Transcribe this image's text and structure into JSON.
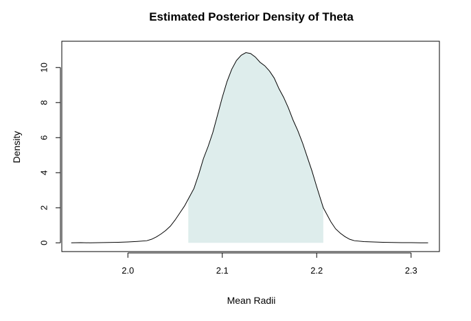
{
  "chart_data": {
    "type": "area",
    "title": "Estimated Posterior Density of Theta",
    "xlabel": "Mean Radii",
    "ylabel": "Density",
    "xlim": [
      1.93,
      2.33
    ],
    "ylim": [
      -0.5,
      11.5
    ],
    "x_ticks": [
      2.0,
      2.1,
      2.2,
      2.3
    ],
    "x_tick_labels": [
      "2.0",
      "2.1",
      "2.2",
      "2.3"
    ],
    "y_ticks": [
      0,
      2,
      4,
      6,
      8,
      10
    ],
    "y_tick_labels": [
      "0",
      "2",
      "4",
      "6",
      "8",
      "10"
    ],
    "grid": false,
    "interval_shaded": [
      2.064,
      2.207
    ],
    "interval_fill_color": "#deedec",
    "line_color": "#000000",
    "series": [
      {
        "x": [
          1.94,
          1.95,
          1.96,
          1.97,
          1.98,
          1.99,
          2.0,
          2.01,
          2.02,
          2.025,
          2.03,
          2.035,
          2.04,
          2.045,
          2.05,
          2.055,
          2.06,
          2.064,
          2.07,
          2.075,
          2.08,
          2.085,
          2.09,
          2.095,
          2.1,
          2.105,
          2.11,
          2.115,
          2.12,
          2.125,
          2.13,
          2.135,
          2.14,
          2.145,
          2.15,
          2.155,
          2.16,
          2.165,
          2.17,
          2.175,
          2.18,
          2.185,
          2.19,
          2.195,
          2.2,
          2.207,
          2.21,
          2.215,
          2.22,
          2.225,
          2.23,
          2.235,
          2.24,
          2.25,
          2.26,
          2.27,
          2.28,
          2.29,
          2.3,
          2.31,
          2.318
        ],
        "y": [
          0.0,
          0.01,
          0.0,
          0.01,
          0.02,
          0.03,
          0.05,
          0.08,
          0.12,
          0.2,
          0.33,
          0.5,
          0.7,
          0.95,
          1.3,
          1.7,
          2.1,
          2.5,
          3.1,
          3.9,
          4.8,
          5.5,
          6.3,
          7.3,
          8.3,
          9.2,
          9.9,
          10.4,
          10.7,
          10.85,
          10.8,
          10.6,
          10.3,
          10.1,
          9.8,
          9.4,
          8.8,
          8.3,
          7.7,
          7.0,
          6.4,
          5.7,
          4.9,
          4.1,
          3.2,
          2.0,
          1.7,
          1.2,
          0.8,
          0.55,
          0.35,
          0.2,
          0.12,
          0.07,
          0.05,
          0.03,
          0.02,
          0.01,
          0.01,
          0.0,
          0.0
        ]
      }
    ]
  }
}
